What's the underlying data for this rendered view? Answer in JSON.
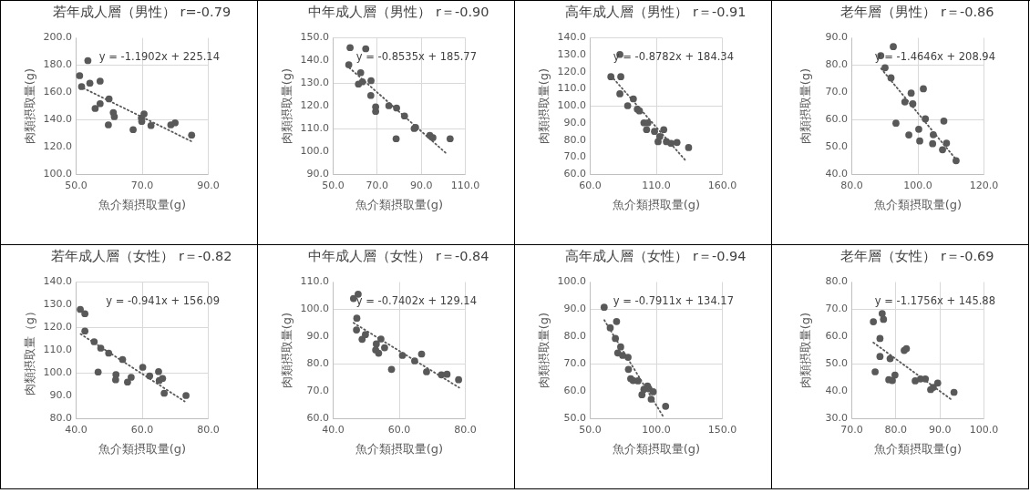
{
  "chart_data": [
    {
      "type": "scatter",
      "title": "若年成人層（男性） r=-0.79",
      "xlabel": "魚介類摂取量(g)",
      "ylabel": "肉類摂取量(g)",
      "annotations": [
        "y = -1.1902x + 225.14"
      ],
      "marker": "circle",
      "grid": true,
      "xlim": [
        50,
        90
      ],
      "xticks": [
        {
          "value": 50,
          "label": "50.0"
        },
        {
          "value": 70,
          "label": "70.0"
        },
        {
          "value": 90,
          "label": "90.0"
        }
      ],
      "ylim": [
        100,
        200
      ],
      "yticks": [
        {
          "value": 100,
          "label": "100.0"
        },
        {
          "value": 120,
          "label": "120.0"
        },
        {
          "value": 140,
          "label": "140.0"
        },
        {
          "value": 160,
          "label": "160.0"
        },
        {
          "value": 180,
          "label": "180.0"
        },
        {
          "value": 200,
          "label": "200.0"
        }
      ],
      "series": [
        {
          "color": "#595959",
          "x": [
            51.2,
            51.8,
            53.7,
            54.3,
            57.4,
            55.9,
            57.4,
            60.1,
            59.9,
            61.4,
            61.7,
            67.4,
            69.9,
            70.7,
            70,
            72.8,
            78.8,
            80.1,
            85.1
          ],
          "values": [
            172,
            164,
            183,
            166.5,
            168,
            148,
            151.5,
            155,
            136,
            145,
            142,
            132.5,
            141,
            144,
            138.5,
            135.5,
            136,
            137.5,
            128.5
          ]
        },
        {
          "type": "line",
          "line_style": "dotted",
          "color": "#595959",
          "marker": "none",
          "x": [
            51.2,
            85
          ],
          "values": [
            164.2,
            124
          ]
        }
      ]
    },
    {
      "type": "scatter",
      "title": "中年成人層（男性） r＝-0.90",
      "xlabel": "魚介類摂取量(g)",
      "ylabel": "肉類摂取量(g)",
      "annotations": [
        "y = -0.8535x + 185.77"
      ],
      "marker": "circle",
      "grid": true,
      "xlim": [
        50,
        110
      ],
      "xticks": [
        {
          "value": 50,
          "label": "50.0"
        },
        {
          "value": 70,
          "label": "70.0"
        },
        {
          "value": 90,
          "label": "90.0"
        },
        {
          "value": 110,
          "label": "110.0"
        }
      ],
      "ylim": [
        90,
        150
      ],
      "yticks": [
        {
          "value": 90,
          "label": "90.0"
        },
        {
          "value": 100,
          "label": "100.0"
        },
        {
          "value": 110,
          "label": "110.0"
        },
        {
          "value": 120,
          "label": "120.0"
        },
        {
          "value": 130,
          "label": "130.0"
        },
        {
          "value": 140,
          "label": "140.0"
        },
        {
          "value": 150,
          "label": "150.0"
        }
      ],
      "series": [
        {
          "color": "#595959",
          "x": [
            57.3,
            57.9,
            65,
            62.7,
            61.7,
            63.5,
            67.4,
            67.3,
            69.5,
            69.5,
            75.5,
            79,
            82.6,
            87,
            87.6,
            78.8,
            94.1,
            95.5,
            103.3
          ],
          "values": [
            138,
            145.5,
            145,
            134.5,
            129.5,
            130.5,
            131,
            124.5,
            119.5,
            117.5,
            120,
            119,
            115.5,
            110,
            110.5,
            105.5,
            107,
            106,
            105.5
          ]
        },
        {
          "type": "line",
          "line_style": "dotted",
          "color": "#595959",
          "marker": "none",
          "x": [
            57.5,
            102
          ],
          "values": [
            136.7,
            98.7
          ]
        }
      ]
    },
    {
      "type": "scatter",
      "title": "高年成人層（男性） r＝-0.91",
      "xlabel": "魚介類摂取量(g)",
      "ylabel": "肉類摂取量(g)",
      "annotations": [
        "y = -0.8782x + 184.34"
      ],
      "marker": "circle",
      "grid": true,
      "xlim": [
        60,
        160
      ],
      "xticks": [
        {
          "value": 60,
          "label": "60.0"
        },
        {
          "value": 110,
          "label": "110.0"
        },
        {
          "value": 160,
          "label": "160.0"
        }
      ],
      "ylim": [
        60,
        140
      ],
      "yticks": [
        {
          "value": 60,
          "label": "60.0"
        },
        {
          "value": 70,
          "label": "70.0"
        },
        {
          "value": 80,
          "label": "80.0"
        },
        {
          "value": 90,
          "label": "90.0"
        },
        {
          "value": 100,
          "label": "100.0"
        },
        {
          "value": 110,
          "label": "110.0"
        },
        {
          "value": 120,
          "label": "120.0"
        },
        {
          "value": 130,
          "label": "130.0"
        },
        {
          "value": 140,
          "label": "140.0"
        }
      ],
      "series": [
        {
          "color": "#595959",
          "x": [
            76,
            82.8,
            83.5,
            82.8,
            88.7,
            93,
            96,
            97.6,
            101,
            103,
            104,
            109,
            111.7,
            113,
            116,
            118,
            121.5,
            126,
            134.8
          ],
          "values": [
            117,
            130,
            117,
            107,
            100,
            104,
            98,
            97,
            90,
            86,
            90,
            85,
            79,
            82,
            86,
            79,
            78,
            78.5,
            75.5
          ]
        },
        {
          "type": "line",
          "line_style": "dotted",
          "color": "#595959",
          "marker": "none",
          "x": [
            76,
            133
          ],
          "values": [
            117.6,
            67.5
          ]
        }
      ]
    },
    {
      "type": "scatter",
      "title": "老年層（男性） r＝-0.86",
      "xlabel": "魚介類摂取量(g)",
      "ylabel": "肉類摂取量(g)",
      "annotations": [
        "y = -1.4646x + 208.94"
      ],
      "marker": "circle",
      "grid": true,
      "xlim": [
        80,
        120
      ],
      "xticks": [
        {
          "value": 80,
          "label": "80.0"
        },
        {
          "value": 100,
          "label": "100.0"
        },
        {
          "value": 120,
          "label": "120.0"
        }
      ],
      "ylim": [
        40,
        90
      ],
      "yticks": [
        {
          "value": 40,
          "label": "40.0"
        },
        {
          "value": 50,
          "label": "50.0"
        },
        {
          "value": 60,
          "label": "60.0"
        },
        {
          "value": 70,
          "label": "70.0"
        },
        {
          "value": 80,
          "label": "80.0"
        },
        {
          "value": 90,
          "label": "90.0"
        }
      ],
      "series": [
        {
          "color": "#595959",
          "x": [
            88.9,
            92.7,
            90.2,
            92,
            93.5,
            96.2,
            98.1,
            98.6,
            101.8,
            97.4,
            100.4,
            100.7,
            102.4,
            104.8,
            104.6,
            108,
            108.8,
            107.6,
            111.7
          ],
          "values": [
            83.3,
            86.6,
            78.9,
            75.2,
            58.6,
            66.4,
            69.6,
            65.7,
            71.2,
            54.3,
            56.4,
            52.1,
            60.2,
            54.4,
            51.1,
            59.4,
            51.3,
            48.9,
            44.9
          ]
        },
        {
          "type": "line",
          "line_style": "dotted",
          "color": "#595959",
          "marker": "none",
          "x": [
            89,
            112
          ],
          "values": [
            78.6,
            44.9
          ]
        }
      ]
    },
    {
      "type": "scatter",
      "title": "若年成人層（女性） r＝-0.82",
      "xlabel": "魚介類摂取量(g)",
      "ylabel": "肉類摂取量（g）",
      "annotations": [
        "y = -0.941x + 156.09"
      ],
      "marker": "circle",
      "grid": true,
      "xlim": [
        40,
        80
      ],
      "xticks": [
        {
          "value": 40,
          "label": "40.0"
        },
        {
          "value": 60,
          "label": "60.0"
        },
        {
          "value": 80,
          "label": "80.0"
        }
      ],
      "ylim": [
        80,
        140
      ],
      "yticks": [
        {
          "value": 80,
          "label": "80.0"
        },
        {
          "value": 90,
          "label": "90.0"
        },
        {
          "value": 100,
          "label": "100.0"
        },
        {
          "value": 110,
          "label": "110.0"
        },
        {
          "value": 120,
          "label": "120.0"
        },
        {
          "value": 130,
          "label": "130.0"
        },
        {
          "value": 140,
          "label": "140.0"
        }
      ],
      "series": [
        {
          "color": "#595959",
          "x": [
            41.4,
            42.8,
            42.8,
            45.6,
            47.6,
            46.8,
            50,
            54.2,
            52.2,
            52.1,
            55.7,
            56.8,
            60.3,
            62.4,
            65.1,
            65.3,
            66.3,
            66.8,
            73.4
          ],
          "values": [
            127.8,
            125.9,
            118.3,
            113.6,
            110.8,
            100.3,
            108.6,
            105.8,
            99.2,
            96.9,
            95.9,
            98,
            102.4,
            98.6,
            100.5,
            96.6,
            97.5,
            91,
            90
          ]
        },
        {
          "type": "line",
          "line_style": "dotted",
          "color": "#595959",
          "marker": "none",
          "x": [
            41.5,
            73
          ],
          "values": [
            117,
            87.4
          ]
        }
      ]
    },
    {
      "type": "scatter",
      "title": "中年成人層（女性） r＝-0.84",
      "xlabel": "魚介類摂取量(g)",
      "ylabel": "肉類摂取量(g)",
      "annotations": [
        "y = -0.7402x + 129.14"
      ],
      "marker": "circle",
      "grid": true,
      "xlim": [
        40,
        80
      ],
      "xticks": [
        {
          "value": 40,
          "label": "40.0"
        },
        {
          "value": 60,
          "label": "60.0"
        },
        {
          "value": 80,
          "label": "80.0"
        }
      ],
      "ylim": [
        60,
        110
      ],
      "yticks": [
        {
          "value": 60,
          "label": "60.0"
        },
        {
          "value": 70,
          "label": "70.0"
        },
        {
          "value": 80,
          "label": "80.0"
        },
        {
          "value": 90,
          "label": "90.0"
        },
        {
          "value": 100,
          "label": "100.0"
        },
        {
          "value": 110,
          "label": "110.0"
        }
      ],
      "series": [
        {
          "color": "#595959",
          "x": [
            46.3,
            47.7,
            47.3,
            47.2,
            48.9,
            49.9,
            53.2,
            53,
            53.9,
            54.6,
            55.7,
            57.8,
            61.1,
            64.8,
            66.9,
            68.4,
            72.9,
            74.6,
            78.1
          ],
          "values": [
            103.8,
            105.4,
            96.6,
            92.3,
            88.9,
            90.6,
            87.2,
            85,
            83.8,
            89,
            85.8,
            77.9,
            83,
            81,
            83.5,
            77,
            75.9,
            76.1,
            74.1
          ]
        },
        {
          "type": "line",
          "line_style": "dotted",
          "color": "#595959",
          "marker": "none",
          "x": [
            46.3,
            78.3
          ],
          "values": [
            94.9,
            71.2
          ]
        }
      ]
    },
    {
      "type": "scatter",
      "title": "高年成人層（女性） r＝-0.94",
      "xlabel": "魚介類摂取量(g)",
      "ylabel": "肉類摂取量(g)",
      "annotations": [
        "y = -0.7911x + 134.17"
      ],
      "marker": "circle",
      "grid": true,
      "xlim": [
        50,
        150
      ],
      "xticks": [
        {
          "value": 50,
          "label": "50.0"
        },
        {
          "value": 100,
          "label": "100.0"
        },
        {
          "value": 150,
          "label": "150.0"
        }
      ],
      "ylim": [
        50,
        100
      ],
      "yticks": [
        {
          "value": 50,
          "label": "50.0"
        },
        {
          "value": 60,
          "label": "60.0"
        },
        {
          "value": 70,
          "label": "70.0"
        },
        {
          "value": 80,
          "label": "80.0"
        },
        {
          "value": 90,
          "label": "90.0"
        },
        {
          "value": 100,
          "label": "100.0"
        }
      ],
      "series": [
        {
          "color": "#595959",
          "x": [
            60.9,
            65.5,
            70.3,
            69.4,
            73.4,
            71.2,
            74.9,
            79,
            79.3,
            81,
            82.8,
            86.5,
            89.5,
            91,
            93.7,
            94.8,
            96.5,
            98,
            107.4
          ],
          "values": [
            90.6,
            83.1,
            85.4,
            79.2,
            76.1,
            73.9,
            73,
            72.3,
            67.9,
            64.5,
            63.8,
            63.7,
            58.6,
            60.6,
            61.8,
            60.8,
            57,
            59.7,
            54.4
          ]
        },
        {
          "type": "line",
          "line_style": "dotted",
          "color": "#595959",
          "marker": "none",
          "x": [
            61,
            106
          ],
          "values": [
            85.9,
            50.3
          ]
        }
      ]
    },
    {
      "type": "scatter",
      "title": "老年層（女性） r＝-0.69",
      "xlabel": "魚介類摂取量(g)",
      "ylabel": "肉類摂取量(g)",
      "annotations": [
        "y = -1.1756x + 145.88"
      ],
      "marker": "circle",
      "grid": true,
      "xlim": [
        70,
        100
      ],
      "xticks": [
        {
          "value": 70,
          "label": "70.0"
        },
        {
          "value": 80,
          "label": "80.0"
        },
        {
          "value": 90,
          "label": "90.0"
        },
        {
          "value": 100,
          "label": "100.0"
        }
      ],
      "ylim": [
        30,
        80
      ],
      "yticks": [
        {
          "value": 30,
          "label": "30.0"
        },
        {
          "value": 40,
          "label": "40.0"
        },
        {
          "value": 50,
          "label": "50.0"
        },
        {
          "value": 60,
          "label": "60.0"
        },
        {
          "value": 70,
          "label": "70.0"
        },
        {
          "value": 80,
          "label": "80.0"
        }
      ],
      "series": [
        {
          "color": "#595959",
          "x": [
            75,
            77,
            77.3,
            76.5,
            76.5,
            75.4,
            78.8,
            78.5,
            79.3,
            79.9,
            82,
            82.5,
            84.5,
            85.7,
            86.8,
            88,
            88.6,
            89.6,
            93.3
          ],
          "values": [
            65.3,
            68.3,
            66.2,
            59.2,
            52.6,
            47,
            51.8,
            44.1,
            43.8,
            45.8,
            54.8,
            55.5,
            43.7,
            44.4,
            44.4,
            40.5,
            41.3,
            42.9,
            39.5
          ]
        },
        {
          "type": "line",
          "line_style": "dotted",
          "color": "#595959",
          "marker": "none",
          "x": [
            75,
            93
          ],
          "values": [
            57.7,
            36.5
          ]
        }
      ]
    }
  ]
}
